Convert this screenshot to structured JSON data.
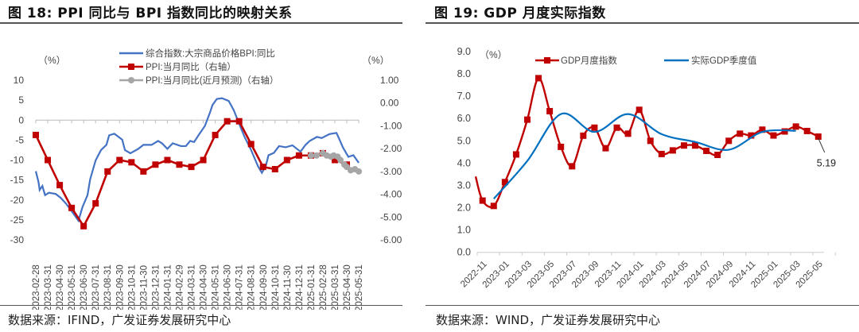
{
  "panels": {
    "left_title": "图 18:  PPI 同比与 BPI 指数同比的映射关系",
    "right_title": "图 19:  GDP 月度实际指数",
    "left_source": "数据来源：IFIND，广发证券发展研究中心",
    "right_source": "数据来源：WIND，广发证券发展研究中心"
  },
  "chart_data": [
    {
      "type": "line",
      "left_unit": "（%）",
      "right_unit": "（%）",
      "ylim_left": [
        -30,
        10
      ],
      "yticks_left": [
        "10",
        "5",
        "0",
        "-5",
        "-10",
        "-15",
        "-20",
        "-25",
        "-30"
      ],
      "ylim_right": [
        -6,
        1
      ],
      "yticks_right": [
        "1.00",
        "0.00",
        "-1.00",
        "-2.00",
        "-3.00",
        "-4.00",
        "-5.00",
        "-6.00"
      ],
      "legend_position": "top",
      "categories": [
        "2023-02-28",
        "2023-03-31",
        "2023-04-30",
        "2023-05-31",
        "2023-06-30",
        "2023-07-31",
        "2023-08-31",
        "2023-09-30",
        "2023-10-31",
        "2023-11-30",
        "2023-12-31",
        "2024-01-31",
        "2024-02-29",
        "2024-03-31",
        "2024-04-30",
        "2024-05-31",
        "2024-06-30",
        "2024-07-31",
        "2024-08-31",
        "2024-09-30",
        "2024-10-31",
        "2024-11-30",
        "2024-12-31",
        "2025-01-31",
        "2025-02-28",
        "2025-03-31",
        "2025-04-30",
        "2025-05-31"
      ],
      "series": [
        {
          "name": "综合指数:大宗商品价格BPI:同比",
          "axis": "left",
          "color": "#4472C4",
          "points": [
            [
              "2023-02-28",
              -12.8
            ],
            [
              "2023-03-07",
              -15.5
            ],
            [
              "2023-03-10",
              -17.5
            ],
            [
              "2023-03-17",
              -16.5
            ],
            [
              "2023-03-24",
              -18.8
            ],
            [
              "2023-04-03",
              -18.2
            ],
            [
              "2023-04-20",
              -18.5
            ],
            [
              "2023-05-03",
              -19.5
            ],
            [
              "2023-05-17",
              -21.0
            ],
            [
              "2023-05-31",
              -22.8
            ],
            [
              "2023-06-17",
              -25.2
            ],
            [
              "2023-06-27",
              -21.8
            ],
            [
              "2023-07-10",
              -18.8
            ],
            [
              "2023-07-17",
              -14.8
            ],
            [
              "2023-07-31",
              -10.1
            ],
            [
              "2023-08-14",
              -7.5
            ],
            [
              "2023-08-28",
              -6.2
            ],
            [
              "2023-09-04",
              -3.8
            ],
            [
              "2023-09-17",
              -3.4
            ],
            [
              "2023-10-07",
              -4.9
            ],
            [
              "2023-10-14",
              -7.5
            ],
            [
              "2023-10-28",
              -8.3
            ],
            [
              "2023-11-17",
              -7.2
            ],
            [
              "2023-11-30",
              -6.2
            ],
            [
              "2023-12-21",
              -6.2
            ],
            [
              "2024-01-07",
              -5.2
            ],
            [
              "2024-01-17",
              -5.8
            ],
            [
              "2024-01-31",
              -7.2
            ],
            [
              "2024-02-13",
              -5.8
            ],
            [
              "2024-03-04",
              -6.5
            ],
            [
              "2024-03-17",
              -6.5
            ],
            [
              "2024-03-28",
              -5.2
            ],
            [
              "2024-04-07",
              -5.5
            ],
            [
              "2024-04-20",
              -3.5
            ],
            [
              "2024-05-04",
              -1.5
            ],
            [
              "2024-05-17",
              1.8
            ],
            [
              "2024-05-24",
              3.8
            ],
            [
              "2024-06-04",
              5.3
            ],
            [
              "2024-06-17",
              5.5
            ],
            [
              "2024-07-04",
              4.8
            ],
            [
              "2024-07-17",
              2.5
            ],
            [
              "2024-07-31",
              -0.9
            ],
            [
              "2024-08-14",
              -4.2
            ],
            [
              "2024-08-31",
              -7.5
            ],
            [
              "2024-09-17",
              -11.5
            ],
            [
              "2024-09-27",
              -13.2
            ],
            [
              "2024-10-07",
              -11.5
            ],
            [
              "2024-10-14",
              -8.8
            ],
            [
              "2024-10-28",
              -8.2
            ],
            [
              "2024-11-10",
              -6.5
            ],
            [
              "2024-11-27",
              -6.8
            ],
            [
              "2024-12-14",
              -6.3
            ],
            [
              "2025-01-04",
              -7.9
            ],
            [
              "2025-01-17",
              -6.2
            ],
            [
              "2025-01-28",
              -5.2
            ],
            [
              "2025-02-14",
              -4.2
            ],
            [
              "2025-02-25",
              -4.5
            ],
            [
              "2025-03-17",
              -3.5
            ],
            [
              "2025-04-04",
              -3.2
            ],
            [
              "2025-04-10",
              -4.5
            ],
            [
              "2025-04-20",
              -6.8
            ],
            [
              "2025-05-04",
              -9.2
            ],
            [
              "2025-05-17",
              -8.8
            ],
            [
              "2025-05-31",
              -10.7
            ]
          ]
        },
        {
          "name": "PPI:当月同比（右轴）",
          "axis": "right",
          "color": "#C00000",
          "marker": "square",
          "points": [
            [
              "2023-02-28",
              -1.4
            ],
            [
              "2023-03-31",
              -2.5
            ],
            [
              "2023-04-30",
              -3.6
            ],
            [
              "2023-05-31",
              -4.6
            ],
            [
              "2023-06-30",
              -5.4
            ],
            [
              "2023-07-31",
              -4.4
            ],
            [
              "2023-08-31",
              -3.0
            ],
            [
              "2023-09-30",
              -2.5
            ],
            [
              "2023-10-31",
              -2.6
            ],
            [
              "2023-11-30",
              -3.0
            ],
            [
              "2023-12-31",
              -2.7
            ],
            [
              "2024-01-31",
              -2.5
            ],
            [
              "2024-02-29",
              -2.7
            ],
            [
              "2024-03-31",
              -2.8
            ],
            [
              "2024-04-30",
              -2.5
            ],
            [
              "2024-05-31",
              -1.4
            ],
            [
              "2024-06-30",
              -0.8
            ],
            [
              "2024-07-31",
              -0.8
            ],
            [
              "2024-08-31",
              -1.8
            ],
            [
              "2024-09-30",
              -2.8
            ],
            [
              "2024-10-31",
              -2.9
            ],
            [
              "2024-11-30",
              -2.5
            ],
            [
              "2024-12-31",
              -2.3
            ],
            [
              "2025-01-31",
              -2.3
            ],
            [
              "2025-02-28",
              -2.2
            ],
            [
              "2025-03-31",
              -2.5
            ],
            [
              "2025-04-30",
              -2.7
            ]
          ]
        },
        {
          "name": "PPI:当月同比(近月预测)（右轴）",
          "axis": "right",
          "color": "#A6A6A6",
          "marker": "circle",
          "points": [
            [
              "2025-01-31",
              -2.3
            ],
            [
              "2025-02-13",
              -2.3
            ],
            [
              "2025-02-28",
              -2.2
            ],
            [
              "2025-03-10",
              -2.3
            ],
            [
              "2025-03-21",
              -2.35
            ],
            [
              "2025-03-28",
              -2.3
            ],
            [
              "2025-04-07",
              -2.35
            ],
            [
              "2025-04-14",
              -2.5
            ],
            [
              "2025-04-24",
              -2.7
            ],
            [
              "2025-04-30",
              -2.8
            ],
            [
              "2025-05-10",
              -2.95
            ],
            [
              "2025-05-21",
              -2.9
            ],
            [
              "2025-05-31",
              -3.0
            ]
          ]
        }
      ]
    },
    {
      "type": "line",
      "unit": "（%）",
      "ylim": [
        0,
        9
      ],
      "yticks": [
        "0.0",
        "1.0",
        "2.0",
        "3.0",
        "4.0",
        "5.0",
        "6.0",
        "7.0",
        "8.0",
        "9.0"
      ],
      "legend_position": "top",
      "months": [
        "2022-11",
        "2022-12",
        "2023-01",
        "2023-02",
        "2023-03",
        "2023-04",
        "2023-05",
        "2023-06",
        "2023-07",
        "2023-08",
        "2023-09",
        "2023-10",
        "2023-11",
        "2023-12",
        "2024-01",
        "2024-02",
        "2024-03",
        "2024-04",
        "2024-05",
        "2024-06",
        "2024-07",
        "2024-08",
        "2024-09",
        "2024-10",
        "2024-11",
        "2024-12",
        "2025-01",
        "2025-02",
        "2025-03",
        "2025-04",
        "2025-05"
      ],
      "xtick_labels": [
        "2022-11",
        "2023-01",
        "2023-03",
        "2023-05",
        "2023-07",
        "2023-09",
        "2023-11",
        "2024-01",
        "2024-03",
        "2024-05",
        "2024-07",
        "2024-09",
        "2024-11",
        "2025-01",
        "2025-03",
        "2025-05"
      ],
      "series": [
        {
          "name": "GDP月度指数",
          "color": "#C00000",
          "marker": "square",
          "values": [
            2.32,
            2.08,
            3.15,
            4.39,
            5.95,
            7.81,
            6.33,
            4.73,
            3.86,
            5.23,
            5.59,
            4.67,
            5.59,
            5.32,
            6.39,
            5.0,
            4.41,
            4.57,
            4.79,
            4.79,
            4.55,
            4.37,
            5.0,
            5.32,
            5.24,
            5.5,
            5.24,
            5.42,
            5.64,
            5.44,
            5.19
          ]
        },
        {
          "name": "实际GDP季度值",
          "color": "#0070C0",
          "points": [
            [
              "2022-12",
              2.4
            ],
            [
              "2023-03",
              4.1
            ],
            [
              "2023-06",
              6.2
            ],
            [
              "2023-09",
              5.4
            ],
            [
              "2023-12",
              6.2
            ],
            [
              "2024-03",
              5.3
            ],
            [
              "2024-06",
              4.95
            ],
            [
              "2024-09",
              4.6
            ],
            [
              "2024-12",
              5.4
            ],
            [
              "2025-03",
              5.45
            ]
          ]
        }
      ],
      "annotations": [
        {
          "month": "2025-05",
          "value": 5.19,
          "text": "5.19"
        }
      ]
    }
  ]
}
